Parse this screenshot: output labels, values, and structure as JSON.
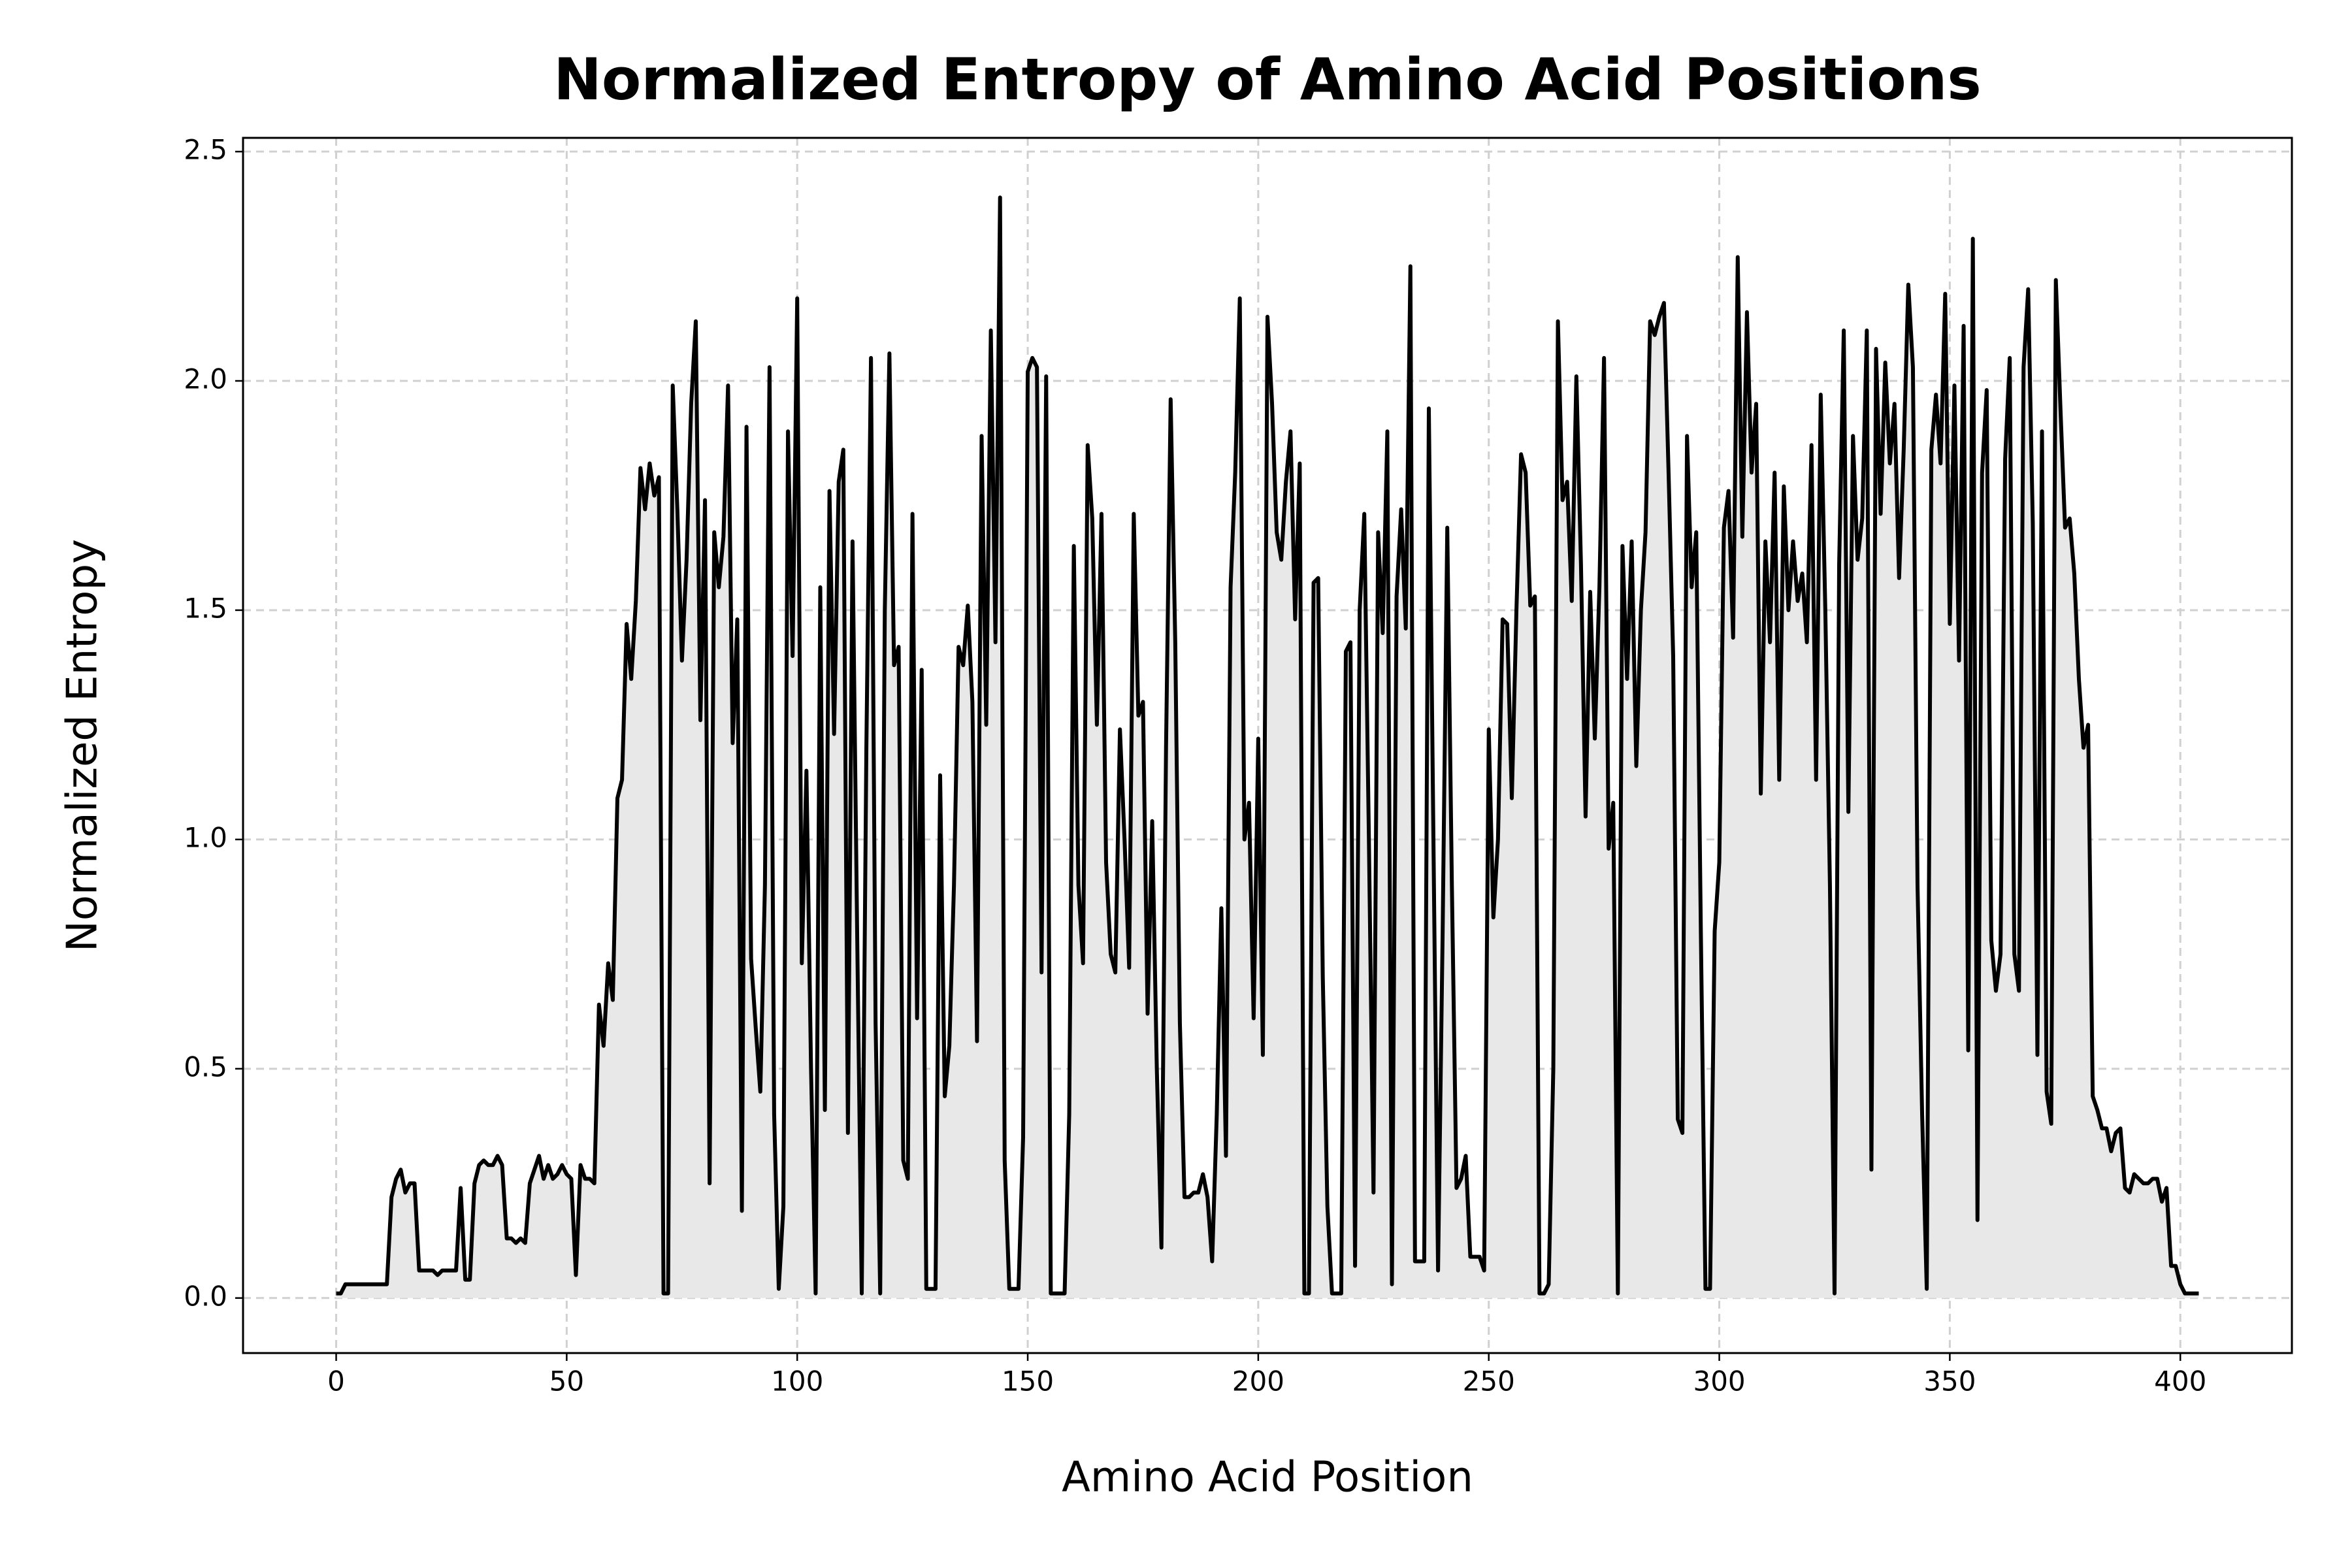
{
  "chart_data": {
    "type": "line",
    "title": "Normalized Entropy of Amino Acid Positions",
    "xlabel": "Amino Acid Position",
    "ylabel": "Normalized Entropy",
    "color": "#000000",
    "fill_color": "#e8e8e8",
    "grid": true,
    "xlim": [
      -20.2,
      424.2
    ],
    "ylim": [
      -0.12,
      2.53
    ],
    "xticks": [
      0,
      50,
      100,
      150,
      200,
      250,
      300,
      350,
      400
    ],
    "yticks": [
      {
        "value": 0,
        "label": "0.0"
      },
      0.5,
      {
        "value": 1,
        "label": "1.0"
      },
      1.5,
      {
        "value": 2,
        "label": "2.0"
      },
      2.5
    ],
    "x": [
      0,
      1,
      2,
      3,
      4,
      5,
      6,
      7,
      8,
      9,
      10,
      11,
      12,
      13,
      14,
      15,
      16,
      17,
      18,
      19,
      20,
      21,
      22,
      23,
      24,
      25,
      26,
      27,
      28,
      29,
      30,
      31,
      32,
      33,
      34,
      35,
      36,
      37,
      38,
      39,
      40,
      41,
      42,
      43,
      44,
      45,
      46,
      47,
      48,
      49,
      50,
      51,
      52,
      53,
      54,
      55,
      56,
      57,
      58,
      59,
      60,
      61,
      62,
      63,
      64,
      65,
      66,
      67,
      68,
      69,
      70,
      71,
      72,
      73,
      74,
      75,
      76,
      77,
      78,
      79,
      80,
      81,
      82,
      83,
      84,
      85,
      86,
      87,
      88,
      89,
      90,
      91,
      92,
      93,
      94,
      95,
      96,
      97,
      98,
      99,
      100,
      101,
      102,
      103,
      104,
      105,
      106,
      107,
      108,
      109,
      110,
      111,
      112,
      113,
      114,
      115,
      116,
      117,
      118,
      119,
      120,
      121,
      122,
      123,
      124,
      125,
      126,
      127,
      128,
      129,
      130,
      131,
      132,
      133,
      134,
      135,
      136,
      137,
      138,
      139,
      140,
      141,
      142,
      143,
      144,
      145,
      146,
      147,
      148,
      149,
      150,
      151,
      152,
      153,
      154,
      155,
      156,
      157,
      158,
      159,
      160,
      161,
      162,
      163,
      164,
      165,
      166,
      167,
      168,
      169,
      170,
      171,
      172,
      173,
      174,
      175,
      176,
      177,
      178,
      179,
      180,
      181,
      182,
      183,
      184,
      185,
      186,
      187,
      188,
      189,
      190,
      191,
      192,
      193,
      194,
      195,
      196,
      197,
      198,
      199,
      200,
      201,
      202,
      203,
      204,
      205,
      206,
      207,
      208,
      209,
      210,
      211,
      212,
      213,
      214,
      215,
      216,
      217,
      218,
      219,
      220,
      221,
      222,
      223,
      224,
      225,
      226,
      227,
      228,
      229,
      230,
      231,
      232,
      233,
      234,
      235,
      236,
      237,
      238,
      239,
      240,
      241,
      242,
      243,
      244,
      245,
      246,
      247,
      248,
      249,
      250,
      251,
      252,
      253,
      254,
      255,
      256,
      257,
      258,
      259,
      260,
      261,
      262,
      263,
      264,
      265,
      266,
      267,
      268,
      269,
      270,
      271,
      272,
      273,
      274,
      275,
      276,
      277,
      278,
      279,
      280,
      281,
      282,
      283,
      284,
      285,
      286,
      287,
      288,
      289,
      290,
      291,
      292,
      293,
      294,
      295,
      296,
      297,
      298,
      299,
      300,
      301,
      302,
      303,
      304,
      305,
      306,
      307,
      308,
      309,
      310,
      311,
      312,
      313,
      314,
      315,
      316,
      317,
      318,
      319,
      320,
      321,
      322,
      323,
      324,
      325,
      326,
      327,
      328,
      329,
      330,
      331,
      332,
      333,
      334,
      335,
      336,
      337,
      338,
      339,
      340,
      341,
      342,
      343,
      344,
      345,
      346,
      347,
      348,
      349,
      350,
      351,
      352,
      353,
      354,
      355,
      356,
      357,
      358,
      359,
      360,
      361,
      362,
      363,
      364,
      365,
      366,
      367,
      368,
      369,
      370,
      371,
      372,
      373,
      374,
      375,
      376,
      377,
      378,
      379,
      380,
      381,
      382,
      383,
      384,
      385,
      386,
      387,
      388,
      389,
      390,
      391,
      392,
      393,
      394,
      395,
      396,
      397,
      398,
      399,
      400,
      401,
      402,
      403,
      404
    ],
    "values": [
      0.01,
      0.01,
      0.03,
      0.03,
      0.03,
      0.03,
      0.03,
      0.03,
      0.03,
      0.03,
      0.03,
      0.03,
      0.22,
      0.26,
      0.28,
      0.23,
      0.25,
      0.25,
      0.06,
      0.06,
      0.06,
      0.06,
      0.05,
      0.06,
      0.06,
      0.06,
      0.06,
      0.24,
      0.04,
      0.04,
      0.25,
      0.29,
      0.3,
      0.29,
      0.29,
      0.31,
      0.29,
      0.13,
      0.13,
      0.12,
      0.13,
      0.12,
      0.25,
      0.28,
      0.31,
      0.26,
      0.29,
      0.26,
      0.27,
      0.29,
      0.27,
      0.26,
      0.05,
      0.29,
      0.26,
      0.26,
      0.25,
      0.64,
      0.55,
      0.73,
      0.65,
      1.09,
      1.13,
      1.47,
      1.35,
      1.52,
      1.81,
      1.72,
      1.82,
      1.75,
      1.79,
      0.01,
      0.01,
      1.99,
      1.72,
      1.39,
      1.61,
      1.95,
      2.13,
      1.26,
      1.74,
      0.25,
      1.67,
      1.55,
      1.66,
      1.99,
      1.21,
      1.48,
      0.19,
      1.9,
      0.74,
      0.59,
      0.45,
      0.9,
      2.03,
      0.4,
      0.02,
      0.2,
      1.89,
      1.4,
      2.18,
      0.73,
      1.15,
      0.5,
      0.01,
      1.55,
      0.41,
      1.76,
      1.23,
      1.78,
      1.85,
      0.36,
      1.65,
      0.8,
      0.01,
      1.2,
      2.05,
      0.6,
      0.01,
      1.5,
      2.06,
      1.38,
      1.42,
      0.3,
      0.26,
      1.71,
      0.61,
      1.37,
      0.02,
      0.02,
      0.02,
      1.14,
      0.44,
      0.55,
      0.9,
      1.42,
      1.38,
      1.51,
      1.3,
      0.56,
      1.88,
      1.25,
      2.11,
      1.43,
      2.4,
      0.3,
      0.02,
      0.02,
      0.02,
      0.35,
      2.02,
      2.05,
      2.03,
      0.71,
      2.01,
      0.01,
      0.01,
      0.01,
      0.01,
      0.4,
      1.64,
      0.9,
      0.73,
      1.86,
      1.7,
      1.25,
      1.71,
      0.95,
      0.75,
      0.71,
      1.24,
      1.0,
      0.72,
      1.71,
      1.27,
      1.3,
      0.62,
      1.04,
      0.5,
      0.11,
      1.2,
      1.96,
      1.43,
      0.6,
      0.22,
      0.22,
      0.23,
      0.23,
      0.27,
      0.22,
      0.08,
      0.4,
      0.85,
      0.31,
      1.55,
      1.8,
      2.18,
      1.0,
      1.08,
      0.61,
      1.22,
      0.53,
      2.14,
      1.95,
      1.67,
      1.61,
      1.78,
      1.89,
      1.48,
      1.82,
      0.01,
      0.01,
      1.56,
      1.57,
      0.7,
      0.2,
      0.01,
      0.01,
      0.01,
      1.41,
      1.43,
      0.07,
      1.5,
      1.71,
      1.0,
      0.23,
      1.67,
      1.45,
      1.89,
      0.03,
      1.53,
      1.72,
      1.46,
      2.25,
      0.08,
      0.08,
      0.08,
      1.94,
      1.0,
      0.06,
      0.8,
      1.68,
      0.9,
      0.24,
      0.26,
      0.31,
      0.09,
      0.09,
      0.09,
      0.06,
      1.24,
      0.83,
      1.0,
      1.48,
      1.47,
      1.09,
      1.5,
      1.84,
      1.8,
      1.51,
      1.53,
      0.01,
      0.01,
      0.03,
      0.5,
      2.13,
      1.74,
      1.78,
      1.52,
      2.01,
      1.6,
      1.05,
      1.54,
      1.22,
      1.55,
      2.05,
      0.98,
      1.08,
      0.01,
      1.64,
      1.35,
      1.65,
      1.16,
      1.5,
      1.67,
      2.13,
      2.1,
      2.14,
      2.17,
      1.8,
      1.4,
      0.39,
      0.36,
      1.88,
      1.55,
      1.67,
      0.8,
      0.02,
      0.02,
      0.8,
      0.95,
      1.68,
      1.76,
      1.44,
      2.27,
      1.66,
      2.15,
      1.8,
      1.95,
      1.1,
      1.65,
      1.43,
      1.8,
      1.13,
      1.77,
      1.5,
      1.65,
      1.52,
      1.58,
      1.43,
      1.86,
      1.13,
      1.97,
      1.5,
      0.9,
      0.01,
      1.6,
      2.11,
      1.06,
      1.88,
      1.61,
      1.7,
      2.11,
      0.28,
      2.07,
      1.71,
      2.04,
      1.82,
      1.95,
      1.57,
      1.85,
      2.21,
      2.03,
      0.9,
      0.4,
      0.02,
      1.85,
      1.97,
      1.82,
      2.19,
      1.47,
      1.99,
      1.39,
      2.12,
      0.54,
      2.31,
      0.17,
      1.8,
      1.98,
      0.78,
      0.67,
      0.75,
      1.83,
      2.05,
      0.75,
      0.67,
      2.03,
      2.2,
      1.69,
      0.53,
      1.89,
      0.45,
      0.38,
      2.22,
      1.94,
      1.68,
      1.7,
      1.58,
      1.35,
      1.2,
      1.25,
      0.44,
      0.41,
      0.37,
      0.37,
      0.32,
      0.36,
      0.37,
      0.24,
      0.23,
      0.27,
      0.26,
      0.25,
      0.25,
      0.26,
      0.26,
      0.21,
      0.24,
      0.07,
      0.07,
      0.03,
      0.01,
      0.01,
      0.01,
      0.01
    ]
  }
}
